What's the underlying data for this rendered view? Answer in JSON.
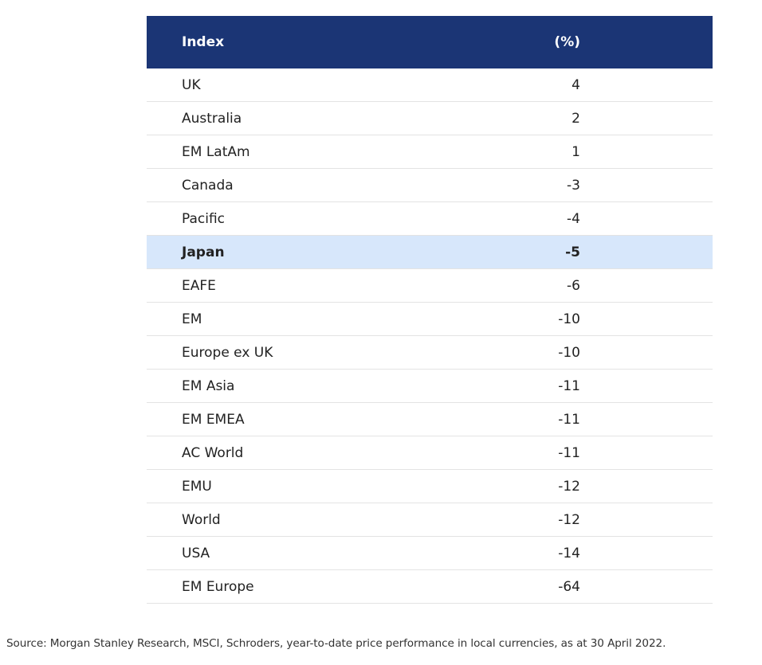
{
  "colors": {
    "header_background": "#1b3575",
    "highlight_row_background": "#d7e7fb"
  },
  "chart_data": {
    "type": "table",
    "columns": [
      "Index",
      "(%)"
    ],
    "rows": [
      {
        "label": "UK",
        "value": "4"
      },
      {
        "label": "Australia",
        "value": "2"
      },
      {
        "label": "EM LatAm",
        "value": "1"
      },
      {
        "label": "Canada",
        "value": "-3"
      },
      {
        "label": "Pacific",
        "value": "-4"
      },
      {
        "label": "Japan",
        "value": "-5",
        "highlighted": true
      },
      {
        "label": "EAFE",
        "value": "-6"
      },
      {
        "label": "EM",
        "value": "-10"
      },
      {
        "label": "Europe ex UK",
        "value": "-10"
      },
      {
        "label": "EM Asia",
        "value": "-11"
      },
      {
        "label": "EM EMEA",
        "value": "-11"
      },
      {
        "label": "AC World",
        "value": "-11"
      },
      {
        "label": "EMU",
        "value": "-12"
      },
      {
        "label": "World",
        "value": "-12"
      },
      {
        "label": "USA",
        "value": "-14"
      },
      {
        "label": "EM Europe",
        "value": "-64"
      }
    ]
  },
  "source_note": "Source: Morgan Stanley Research, MSCI, Schroders, year-to-date price performance in local currencies, as at 30 April 2022."
}
